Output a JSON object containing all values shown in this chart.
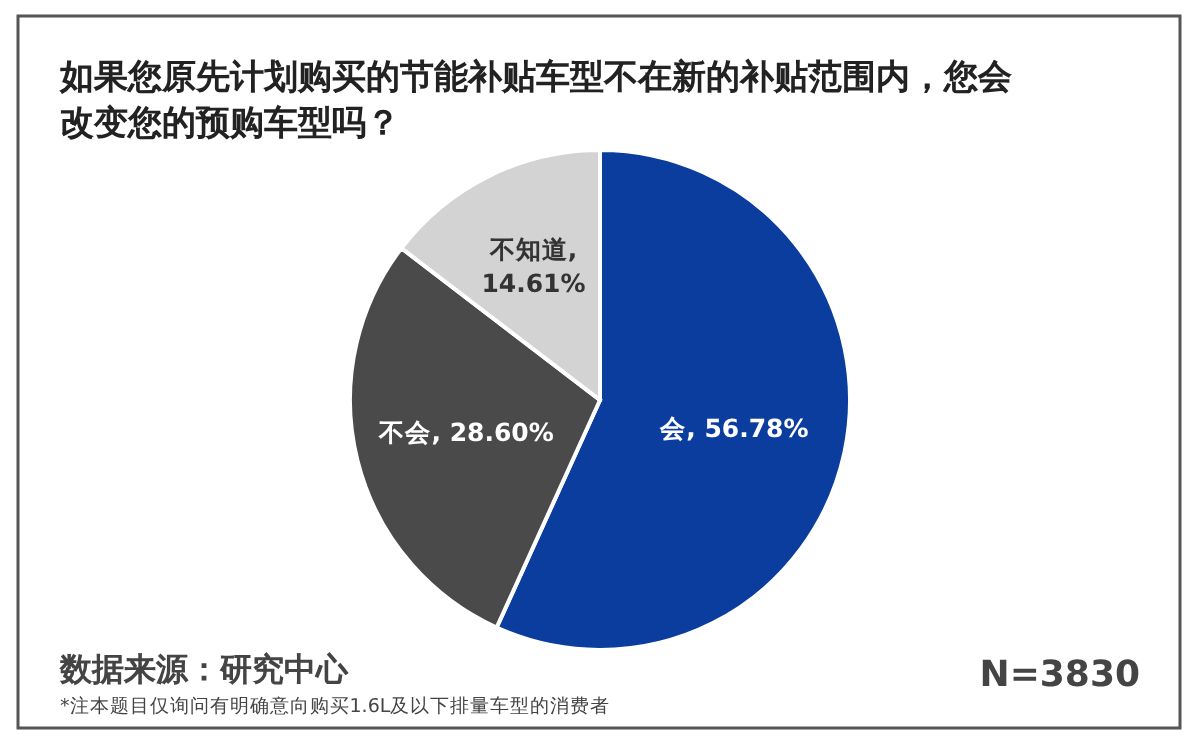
{
  "chart_data": {
    "type": "pie",
    "title": "如果您原先计划购买的节能补贴车型不在新的补贴范围内，您会改变您的预购车型吗？",
    "categories": [
      "会",
      "不会",
      "不知道"
    ],
    "values": [
      56.78,
      28.6,
      14.61
    ],
    "colors": [
      "#0b3d9e",
      "#4a4a4a",
      "#d3d3d3"
    ],
    "value_labels": [
      ", 56.78%",
      ", 28.60%",
      ", 14.61%"
    ],
    "annotations": [
      "数据来源：研究中心",
      "N=3830",
      "*注本题目仅询问有明确意向购买1.6L及以下排量车型的消费者"
    ]
  }
}
